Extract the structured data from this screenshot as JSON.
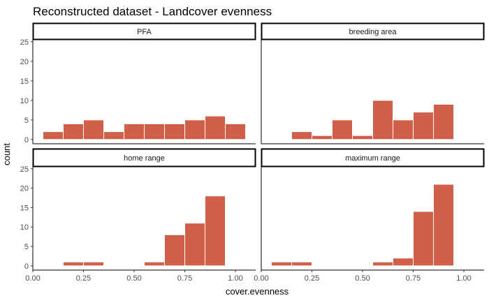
{
  "chart_data": {
    "type": "bar",
    "title": "Reconstructed dataset - Landcover evenness",
    "xlabel": "cover.evenness",
    "ylabel": "count",
    "xlim": [
      0,
      1.1
    ],
    "ylim": [
      0,
      26
    ],
    "x_ticks": [
      "0.00",
      "0.25",
      "0.50",
      "0.75",
      "1.00"
    ],
    "y_ticks": [
      "0",
      "5",
      "10",
      "15",
      "20",
      "25"
    ],
    "bin_width": 0.1,
    "bar_color": "#d05f4a",
    "grid": false,
    "panels": [
      {
        "name": "PFA",
        "bars": [
          {
            "x": 0.1,
            "count": 2
          },
          {
            "x": 0.2,
            "count": 4
          },
          {
            "x": 0.3,
            "count": 5
          },
          {
            "x": 0.4,
            "count": 2
          },
          {
            "x": 0.5,
            "count": 4
          },
          {
            "x": 0.6,
            "count": 4
          },
          {
            "x": 0.7,
            "count": 4
          },
          {
            "x": 0.8,
            "count": 5
          },
          {
            "x": 0.9,
            "count": 6
          },
          {
            "x": 1.0,
            "count": 4
          }
        ]
      },
      {
        "name": "breeding area",
        "bars": [
          {
            "x": 0.2,
            "count": 2
          },
          {
            "x": 0.3,
            "count": 1
          },
          {
            "x": 0.4,
            "count": 5
          },
          {
            "x": 0.5,
            "count": 1
          },
          {
            "x": 0.6,
            "count": 10
          },
          {
            "x": 0.7,
            "count": 5
          },
          {
            "x": 0.8,
            "count": 7
          },
          {
            "x": 0.9,
            "count": 9
          }
        ]
      },
      {
        "name": "home range",
        "bars": [
          {
            "x": 0.2,
            "count": 1
          },
          {
            "x": 0.3,
            "count": 1
          },
          {
            "x": 0.6,
            "count": 1
          },
          {
            "x": 0.7,
            "count": 8
          },
          {
            "x": 0.8,
            "count": 11
          },
          {
            "x": 0.9,
            "count": 18
          }
        ]
      },
      {
        "name": "maximum range",
        "bars": [
          {
            "x": 0.1,
            "count": 1
          },
          {
            "x": 0.2,
            "count": 1
          },
          {
            "x": 0.6,
            "count": 1
          },
          {
            "x": 0.7,
            "count": 2
          },
          {
            "x": 0.8,
            "count": 14
          },
          {
            "x": 0.9,
            "count": 21
          }
        ]
      }
    ]
  }
}
